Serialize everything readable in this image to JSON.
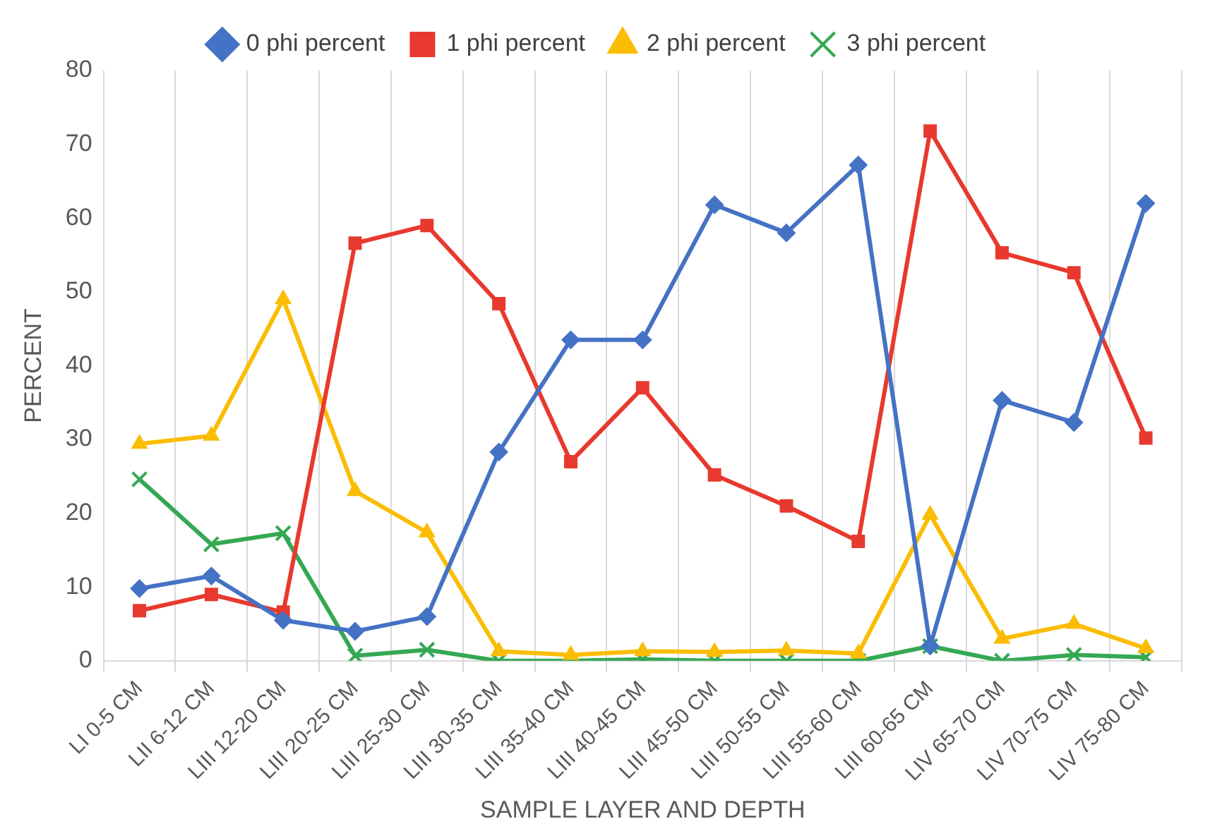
{
  "chart_data": {
    "type": "line",
    "xlabel": "SAMPLE LAYER AND DEPTH",
    "ylabel": "PERCENT",
    "categories": [
      "LI 0-5 CM",
      "LII 6-12 CM",
      "LIII 12-20 CM",
      "LIII 20-25 CM",
      "LIII 25-30 CM",
      "LIII 30-35 CM",
      "LIII 35-40 CM",
      "LIII 40-45 CM",
      "LIII 45-50 CM",
      "LIII 50-55 CM",
      "LIII 55-60 CM",
      "LIII 60-65 CM",
      "LIV 65-70 CM",
      "LIV 70-75 CM",
      "LIV 75-80 CM"
    ],
    "series": [
      {
        "name": "0 phi percent",
        "color": "#4472c4",
        "marker": "diamond",
        "values": [
          9.8,
          11.5,
          5.5,
          4,
          6,
          28.3,
          43.5,
          43.5,
          61.8,
          58,
          67.2,
          2,
          35.3,
          32.3,
          62
        ]
      },
      {
        "name": "1 phi percent",
        "color": "#e8392e",
        "marker": "square",
        "values": [
          6.8,
          9,
          6.6,
          56.6,
          59,
          48.4,
          27,
          37,
          25.2,
          21,
          16.2,
          71.8,
          55.3,
          52.6,
          30.2
        ]
      },
      {
        "name": "2 phi percent",
        "color": "#fbbc04",
        "marker": "triangle",
        "values": [
          29.4,
          30.5,
          49,
          23,
          17.4,
          1.3,
          0.8,
          1.3,
          1.2,
          1.4,
          1,
          19.8,
          3,
          5,
          1.7
        ]
      },
      {
        "name": "3 phi percent",
        "color": "#34a853",
        "marker": "cross",
        "values": [
          24.6,
          15.8,
          17.3,
          0.7,
          1.5,
          0,
          0,
          0.2,
          0,
          0,
          0,
          2,
          0,
          0.8,
          0.5
        ]
      }
    ],
    "ylim": [
      0,
      80
    ],
    "yticks": [
      0,
      10,
      20,
      30,
      40,
      50,
      60,
      70,
      80
    ],
    "grid": "x",
    "legend": "top",
    "line_style": "solid"
  }
}
